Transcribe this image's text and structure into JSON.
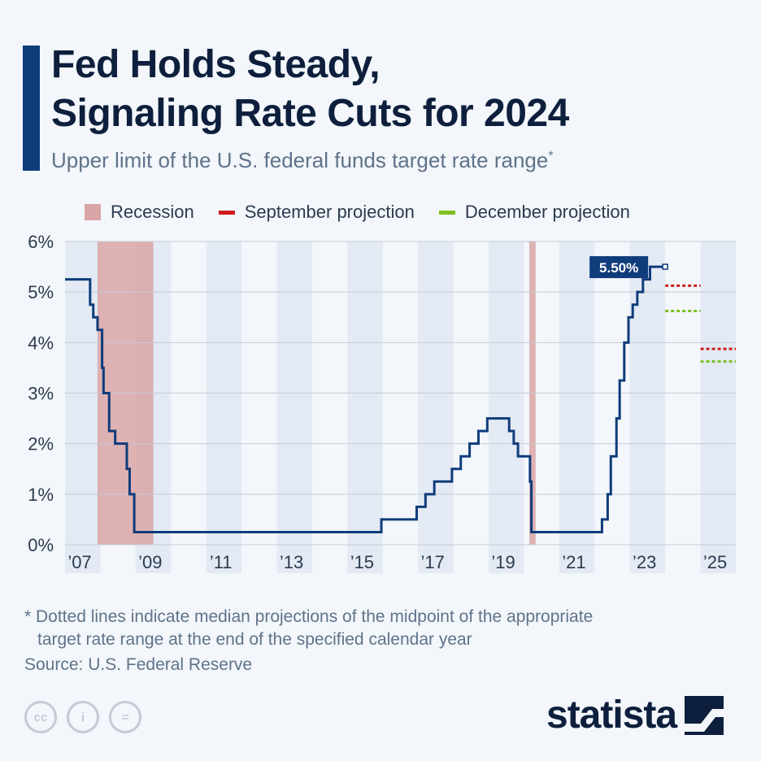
{
  "header": {
    "title_line1": "Fed Holds Steady,",
    "title_line2": "Signaling Rate Cuts for 2024",
    "subtitle": "Upper limit of the U.S. federal funds target rate range",
    "subtitle_mark": "*"
  },
  "legend": {
    "recession": "Recession",
    "september": "September projection",
    "december": "December projection"
  },
  "colors": {
    "line": "#0f3c7a",
    "recession": "#d9a4a6",
    "september": "#cc1d1d",
    "december": "#7cc11e",
    "band": "#e3eaf4",
    "grid": "#c5ccd6"
  },
  "chart_data": {
    "type": "line",
    "title": "Upper limit of the U.S. federal funds target rate range",
    "ylim": [
      0,
      6
    ],
    "xlim": [
      2007.0,
      2026.0
    ],
    "y_ticks": [
      "0%",
      "1%",
      "2%",
      "3%",
      "4%",
      "5%",
      "6%"
    ],
    "x_ticks": [
      "’07",
      "’09",
      "’11",
      "’13",
      "’15",
      "’17",
      "’19",
      "’21",
      "’23",
      "’25"
    ],
    "grid": true,
    "legend_position": "top",
    "recessions": [
      [
        2007.92,
        2009.5
      ],
      [
        2020.15,
        2020.33
      ]
    ],
    "series": [
      {
        "type": "step",
        "x": [
          2007.0,
          2007.71,
          2007.8,
          2007.92,
          2008.05,
          2008.09,
          2008.25,
          2008.42,
          2008.75,
          2008.83,
          2008.96,
          2015.96,
          2016.96,
          2017.21,
          2017.46,
          2017.96,
          2018.21,
          2018.46,
          2018.71,
          2018.96,
          2019.58,
          2019.71,
          2019.83,
          2020.17,
          2020.21,
          2022.21,
          2022.37,
          2022.46,
          2022.62,
          2022.71,
          2022.84,
          2022.96,
          2023.08,
          2023.21,
          2023.37,
          2023.57
        ],
        "values": [
          5.25,
          4.75,
          4.5,
          4.25,
          3.5,
          3.0,
          2.25,
          2.0,
          1.5,
          1.0,
          0.25,
          0.5,
          0.75,
          1.0,
          1.25,
          1.5,
          1.75,
          2.0,
          2.25,
          2.5,
          2.25,
          2.0,
          1.75,
          1.25,
          0.25,
          0.5,
          1.0,
          1.75,
          2.5,
          3.25,
          4.0,
          4.5,
          4.75,
          5.0,
          5.25,
          5.5
        ],
        "end_x": 2024.0
      }
    ],
    "last_label": "5.50%",
    "projections": [
      {
        "name": "September projection",
        "x": [
          2024.0,
          2025.0
        ],
        "value": 5.125
      },
      {
        "name": "December projection",
        "x": [
          2024.0,
          2025.0
        ],
        "value": 4.625
      },
      {
        "name": "September projection",
        "x": [
          2025.0,
          2026.0
        ],
        "value": 3.875
      },
      {
        "name": "December projection",
        "x": [
          2025.0,
          2026.0
        ],
        "value": 3.625
      }
    ]
  },
  "footer": {
    "footnote_line1": "* Dotted lines indicate median projections of the midpoint of the appropriate",
    "footnote_line2": "target rate range at the end of the specified calendar year",
    "source": "Source: U.S. Federal Reserve",
    "brand": "statista",
    "cc_icons": [
      "cc",
      "i",
      "="
    ]
  }
}
